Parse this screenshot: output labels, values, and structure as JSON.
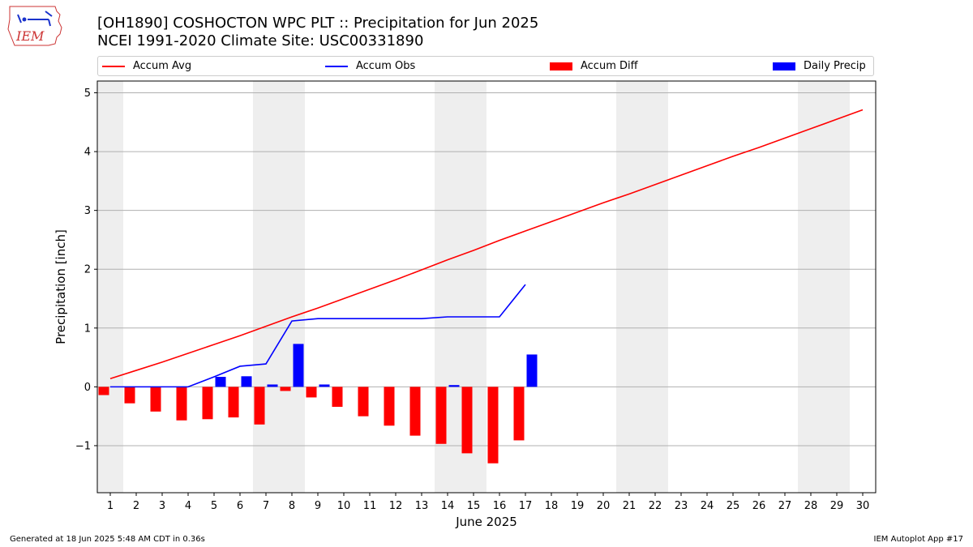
{
  "header": {
    "title_line1": "[OH1890] COSHOCTON WPC PLT :: Precipitation for Jun 2025",
    "title_line2": "NCEI 1991-2020 Climate Site: USC00331890",
    "logo_text": "IEM"
  },
  "footer": {
    "generated": "Generated at 18 Jun 2025 5:48 AM CDT in 0.36s",
    "app": "IEM Autoplot App #17"
  },
  "colors": {
    "avg": "#ff0000",
    "obs": "#0000ff",
    "diff": "#ff0000",
    "daily": "#0000ff",
    "weekend_band": "#eeeeee",
    "grid": "#b0b0b0"
  },
  "chart_data": {
    "type": "bar",
    "xlabel": "June 2025",
    "ylabel": "Precipitation [inch]",
    "xlim": [
      0.5,
      30.5
    ],
    "ylim": [
      -1.8,
      5.2
    ],
    "yticks": [
      -1,
      0,
      1,
      2,
      3,
      4,
      5
    ],
    "ytick_labels": [
      "−1",
      "0",
      "1",
      "2",
      "3",
      "4",
      "5"
    ],
    "x": [
      1,
      2,
      3,
      4,
      5,
      6,
      7,
      8,
      9,
      10,
      11,
      12,
      13,
      14,
      15,
      16,
      17,
      18,
      19,
      20,
      21,
      22,
      23,
      24,
      25,
      26,
      27,
      28,
      29,
      30
    ],
    "weekend_bands": [
      [
        0.5,
        1.5
      ],
      [
        6.5,
        8.5
      ],
      [
        13.5,
        15.5
      ],
      [
        20.5,
        22.5
      ],
      [
        27.5,
        29.5
      ]
    ],
    "legend": [
      "Accum Avg",
      "Accum Obs",
      "Accum Diff",
      "Daily Precip"
    ],
    "series": [
      {
        "name": "Accum Avg",
        "kind": "line",
        "x": [
          1,
          2,
          3,
          4,
          5,
          6,
          7,
          8,
          9,
          10,
          11,
          12,
          13,
          14,
          15,
          16,
          17,
          18,
          19,
          20,
          21,
          22,
          23,
          24,
          25,
          26,
          27,
          28,
          29,
          30
        ],
        "values": [
          0.14,
          0.28,
          0.42,
          0.57,
          0.72,
          0.87,
          1.03,
          1.19,
          1.34,
          1.5,
          1.66,
          1.82,
          1.99,
          2.16,
          2.32,
          2.49,
          2.65,
          2.81,
          2.97,
          3.13,
          3.28,
          3.44,
          3.6,
          3.76,
          3.92,
          4.07,
          4.23,
          4.39,
          4.55,
          4.71
        ]
      },
      {
        "name": "Accum Obs",
        "kind": "line",
        "x": [
          1,
          2,
          3,
          4,
          5,
          6,
          7,
          8,
          9,
          10,
          11,
          12,
          13,
          14,
          15,
          16,
          17
        ],
        "values": [
          0.0,
          0.0,
          0.0,
          0.0,
          0.17,
          0.35,
          0.39,
          1.12,
          1.16,
          1.16,
          1.16,
          1.16,
          1.16,
          1.19,
          1.19,
          1.19,
          1.74
        ]
      },
      {
        "name": "Accum Diff",
        "kind": "bar",
        "x": [
          1,
          2,
          3,
          4,
          5,
          6,
          7,
          8,
          9,
          10,
          11,
          12,
          13,
          14,
          15,
          16,
          17
        ],
        "values": [
          -0.14,
          -0.28,
          -0.42,
          -0.57,
          -0.55,
          -0.52,
          -0.64,
          -0.07,
          -0.18,
          -0.34,
          -0.5,
          -0.66,
          -0.83,
          -0.97,
          -1.13,
          -1.3,
          -0.91
        ]
      },
      {
        "name": "Daily Precip",
        "kind": "bar",
        "x": [
          1,
          2,
          3,
          4,
          5,
          6,
          7,
          8,
          9,
          10,
          11,
          12,
          13,
          14,
          15,
          16,
          17
        ],
        "values": [
          0,
          0,
          0,
          0,
          0.17,
          0.18,
          0.04,
          0.73,
          0.04,
          0,
          0,
          0,
          0,
          0.03,
          0,
          0,
          0.55
        ]
      }
    ]
  }
}
